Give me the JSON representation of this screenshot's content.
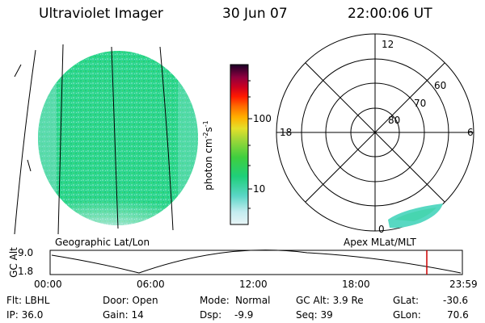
{
  "header": {
    "instrument": "Ultraviolet Imager",
    "date": "30 Jun 07",
    "time": "22:00:06 UT"
  },
  "colorbar": {
    "label": "photon cm^-2 s^-1",
    "ticks": [
      "100",
      "10"
    ],
    "scale": "log",
    "colors": [
      "#e7f3f5",
      "#c0ecef",
      "#59d8c8",
      "#1fcf8a",
      "#3fcf3f",
      "#8ad53b",
      "#c9dc36",
      "#f3e226",
      "#ffb400",
      "#ff7300",
      "#ff2000",
      "#d0001c",
      "#a0003c",
      "#600050",
      "#20002a"
    ]
  },
  "left_panel": {
    "caption": "Geographic Lat/Lon",
    "image_colors": {
      "main": "#28d890",
      "light": "#80e0c8",
      "pale": "#d8ecf0"
    }
  },
  "polar_plot": {
    "caption": "Apex MLat/MLT",
    "mlt_labels": [
      "12",
      "18",
      "6",
      "0"
    ],
    "lat_labels": [
      "60",
      "70",
      "80"
    ]
  },
  "timeline": {
    "ylabel": "GC Alt",
    "yticks": [
      "9.0",
      "1.8"
    ],
    "xticks": [
      "00:00",
      "06:00",
      "12:00",
      "18:00",
      "23:59"
    ],
    "current_time_marker": "22:00",
    "marker_color": "#cc0000"
  },
  "info": {
    "row1": {
      "flt": "Flt: LBHL",
      "door": "Door: Open",
      "mode_label": "Mode:",
      "mode_value": "Normal",
      "gcalt": "GC Alt: 3.9 Re",
      "glat_label": "GLat:",
      "glat_value": "-30.6"
    },
    "row2": {
      "ip": "IP: 36.0",
      "gain": "Gain: 14",
      "dsp_label": "Dsp:",
      "dsp_value": "-9.9",
      "seq": "Seq: 39",
      "glon_label": "GLon:",
      "glon_value": "70.6"
    }
  }
}
